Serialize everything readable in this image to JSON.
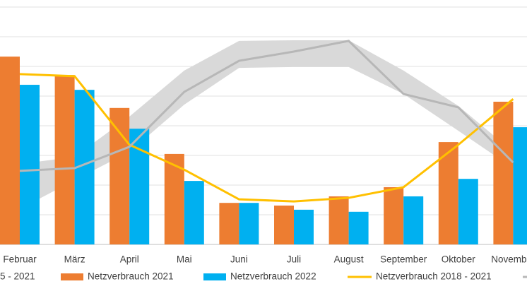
{
  "chart_data": {
    "type": "bar",
    "categories": [
      "Februar",
      "März",
      "April",
      "Mai",
      "Juni",
      "Juli",
      "August",
      "September",
      "Oktober",
      "November"
    ],
    "ylim": [
      0,
      8
    ],
    "yticks": [
      0,
      1,
      2,
      3,
      4,
      5,
      6,
      7,
      8
    ],
    "grid": true,
    "series": [
      {
        "name": "5 - 2021",
        "type": "band",
        "color": "#d9d9d9",
        "low": [
          1.19,
          2.17,
          3.12,
          4.71,
          5.95,
          5.98,
          5.98,
          5.07,
          3.83,
          2.57
        ],
        "high": [
          2.71,
          2.95,
          4.31,
          5.86,
          6.86,
          6.88,
          6.88,
          5.86,
          4.67,
          3.12
        ]
      },
      {
        "name": "Netzverbrauch 2021",
        "type": "bar",
        "color": "#ed7d31",
        "values": [
          6.33,
          5.71,
          4.6,
          3.05,
          1.4,
          1.31,
          1.62,
          1.93,
          3.45,
          4.81
        ]
      },
      {
        "name": "Netzverbrauch 2022",
        "type": "bar",
        "color": "#00b0f0",
        "values": [
          5.38,
          5.21,
          3.9,
          2.14,
          1.4,
          1.17,
          1.1,
          1.62,
          2.21,
          3.95
        ]
      },
      {
        "name": "Netzverbrauch 2018 - 2021",
        "type": "line",
        "color": "#ffc000",
        "values": [
          5.74,
          5.67,
          3.36,
          2.52,
          1.52,
          1.45,
          1.57,
          1.93,
          3.36,
          4.9
        ]
      },
      {
        "name": null,
        "type": "line",
        "color": "#b7b7b7",
        "values": [
          2.48,
          2.57,
          3.29,
          5.14,
          6.19,
          6.5,
          6.86,
          5.07,
          4.62,
          2.76
        ]
      }
    ]
  }
}
